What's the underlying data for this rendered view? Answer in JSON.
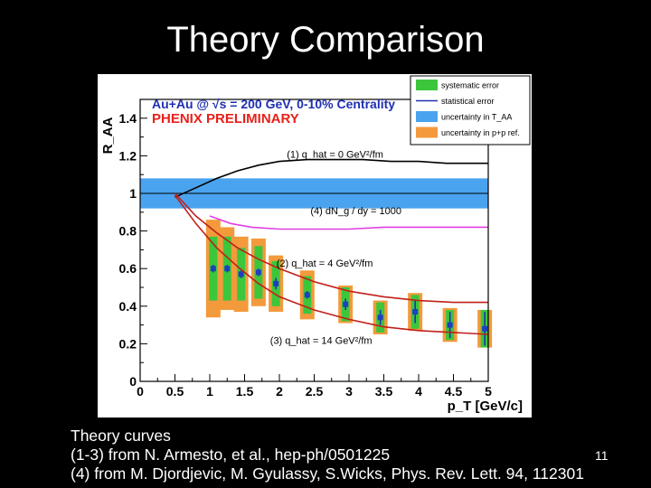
{
  "slide": {
    "title": "Theory Comparison",
    "slide_number": "11",
    "caption_lines": [
      "Theory curves",
      "(1-3) from N. Armesto, et al., hep-ph/0501225",
      "(4) from M. Djordjevic, M. Gyulassy, S.Wicks, Phys. Rev. Lett. 94, 112301"
    ]
  },
  "colors": {
    "background": "#000000",
    "systematic": "#3cc63c",
    "statistical": "#1f2fb3",
    "taa_band": "#4aa3ef",
    "pp_ref": "#f39a3c",
    "marker": "#1f3fbf",
    "curve_red": "#c0201a",
    "curve_magenta": "#e040e0",
    "curve_black": "#000000",
    "header_red": "#e8201a",
    "header_blue": "#1f2fb3"
  },
  "chart_data": {
    "type": "scatter",
    "header": "Au+Au @ √s = 200 GeV, 0-10% Centrality",
    "subheader": "PHENIX PRELIMINARY",
    "xlabel": "p_T [GeV/c]",
    "ylabel": "R_AA",
    "xlim": [
      0,
      5
    ],
    "ylim": [
      0,
      1.5
    ],
    "x_ticks": [
      "0",
      "0.5",
      "1",
      "1.5",
      "2",
      "2.5",
      "3",
      "3.5",
      "4",
      "4.5",
      "5"
    ],
    "y_ticks": [
      "0",
      "0.2",
      "0.4",
      "0.6",
      "0.8",
      "1",
      "1.2",
      "1.4"
    ],
    "legend_position": "top-right",
    "legend": [
      {
        "key": "systematic",
        "label": "systematic error"
      },
      {
        "key": "statistical",
        "label": "statistical error"
      },
      {
        "key": "taa_band",
        "label": "uncertainty in T_AA"
      },
      {
        "key": "pp_ref",
        "label": "uncertainty in p+p ref."
      }
    ],
    "taa_band": {
      "low": 0.92,
      "high": 1.08
    },
    "points": [
      {
        "x": 1.05,
        "y": 0.6,
        "stat": 0.02,
        "sys": 0.17,
        "pp": 0.26
      },
      {
        "x": 1.25,
        "y": 0.6,
        "stat": 0.02,
        "sys": 0.17,
        "pp": 0.22
      },
      {
        "x": 1.45,
        "y": 0.57,
        "stat": 0.02,
        "sys": 0.14,
        "pp": 0.2
      },
      {
        "x": 1.7,
        "y": 0.58,
        "stat": 0.02,
        "sys": 0.14,
        "pp": 0.18
      },
      {
        "x": 1.95,
        "y": 0.52,
        "stat": 0.03,
        "sys": 0.12,
        "pp": 0.15
      },
      {
        "x": 2.4,
        "y": 0.46,
        "stat": 0.02,
        "sys": 0.1,
        "pp": 0.13
      },
      {
        "x": 2.95,
        "y": 0.41,
        "stat": 0.03,
        "sys": 0.09,
        "pp": 0.1
      },
      {
        "x": 3.45,
        "y": 0.34,
        "stat": 0.04,
        "sys": 0.08,
        "pp": 0.09
      },
      {
        "x": 3.95,
        "y": 0.37,
        "stat": 0.06,
        "sys": 0.09,
        "pp": 0.1
      },
      {
        "x": 4.45,
        "y": 0.3,
        "stat": 0.07,
        "sys": 0.08,
        "pp": 0.09
      },
      {
        "x": 4.95,
        "y": 0.28,
        "stat": 0.09,
        "sys": 0.1,
        "pp": 0.1
      }
    ],
    "curves": [
      {
        "label": "(1) q_hat = 0 GeV²/fm",
        "color_key": "curve_black",
        "x": [
          0.5,
          0.8,
          1.1,
          1.4,
          1.7,
          2.0,
          2.4,
          2.8,
          3.2,
          3.6,
          4.0,
          4.4,
          4.8,
          5.0
        ],
        "y": [
          0.98,
          1.03,
          1.08,
          1.12,
          1.15,
          1.17,
          1.18,
          1.18,
          1.18,
          1.17,
          1.17,
          1.16,
          1.16,
          1.16
        ]
      },
      {
        "label": "(4) dN_g / dy = 1000",
        "color_key": "curve_magenta",
        "x": [
          1.0,
          1.3,
          1.6,
          2.0,
          2.5,
          3.0,
          3.5,
          4.0,
          4.5,
          5.0
        ],
        "y": [
          0.88,
          0.84,
          0.82,
          0.81,
          0.81,
          0.81,
          0.82,
          0.82,
          0.82,
          0.82
        ]
      },
      {
        "label": "(2) q_hat = 4 GeV²/fm",
        "color_key": "curve_red",
        "x": [
          0.5,
          0.8,
          1.1,
          1.4,
          1.7,
          2.0,
          2.5,
          3.0,
          3.5,
          4.0,
          4.5,
          5.0
        ],
        "y": [
          1.0,
          0.88,
          0.79,
          0.71,
          0.65,
          0.6,
          0.53,
          0.48,
          0.45,
          0.43,
          0.42,
          0.42
        ]
      },
      {
        "label": "(3) q_hat = 14 GeV²/fm",
        "color_key": "curve_red",
        "x": [
          0.5,
          0.8,
          1.1,
          1.4,
          1.7,
          2.0,
          2.5,
          3.0,
          3.5,
          4.0,
          4.5,
          5.0
        ],
        "y": [
          0.99,
          0.84,
          0.71,
          0.61,
          0.52,
          0.45,
          0.38,
          0.33,
          0.29,
          0.27,
          0.26,
          0.25
        ]
      }
    ],
    "curve_labels": [
      {
        "text": "(1) q_hat = 0 GeV²/fm",
        "x": 2.8,
        "y": 1.19
      },
      {
        "text": "(4) dN_g / dy = 1000",
        "x": 3.1,
        "y": 0.89
      },
      {
        "text": "(2) q_hat = 4 GeV²/fm",
        "x": 2.65,
        "y": 0.61
      },
      {
        "text": "(3) q_hat = 14 GeV²/fm",
        "x": 2.6,
        "y": 0.2
      }
    ]
  }
}
